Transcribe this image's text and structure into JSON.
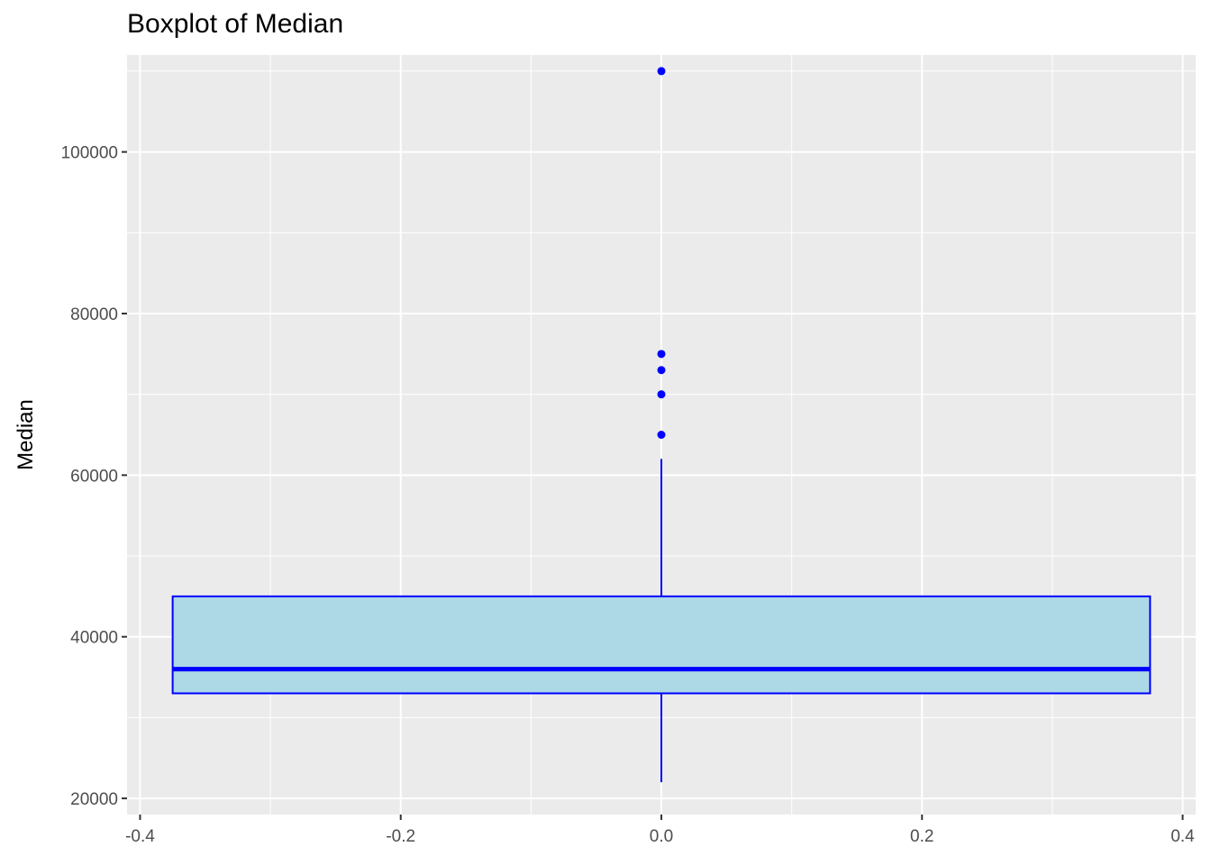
{
  "chart_data": {
    "type": "boxplot",
    "title": "Boxplot of Median",
    "xlabel": "",
    "ylabel": "Median",
    "xlim": [
      -0.41,
      0.41
    ],
    "ylim": [
      18000,
      112000
    ],
    "x_ticks": [
      -0.4,
      -0.2,
      0.0,
      0.2,
      0.4
    ],
    "x_tick_labels": [
      "-0.4",
      "-0.2",
      "0.0",
      "0.2",
      "0.4"
    ],
    "y_ticks": [
      20000,
      40000,
      60000,
      80000,
      100000
    ],
    "y_tick_labels": [
      "20000",
      "40000",
      "60000",
      "80000",
      "100000"
    ],
    "grid": true,
    "box": {
      "x_center": 0.0,
      "x_range": [
        -0.375,
        0.375
      ],
      "whisker_low": 22000,
      "q1": 33000,
      "median": 36000,
      "q3": 45000,
      "whisker_high": 62000,
      "outliers": [
        65000,
        70000,
        73000,
        75000,
        110000
      ]
    },
    "colors": {
      "panel_background": "#ebebeb",
      "grid_line": "#ffffff",
      "box_fill": "#add8e6",
      "box_stroke": "#0000ff",
      "outlier": "#0000ff",
      "tick_label": "#4d4d4d",
      "tick_mark": "#333333"
    }
  }
}
